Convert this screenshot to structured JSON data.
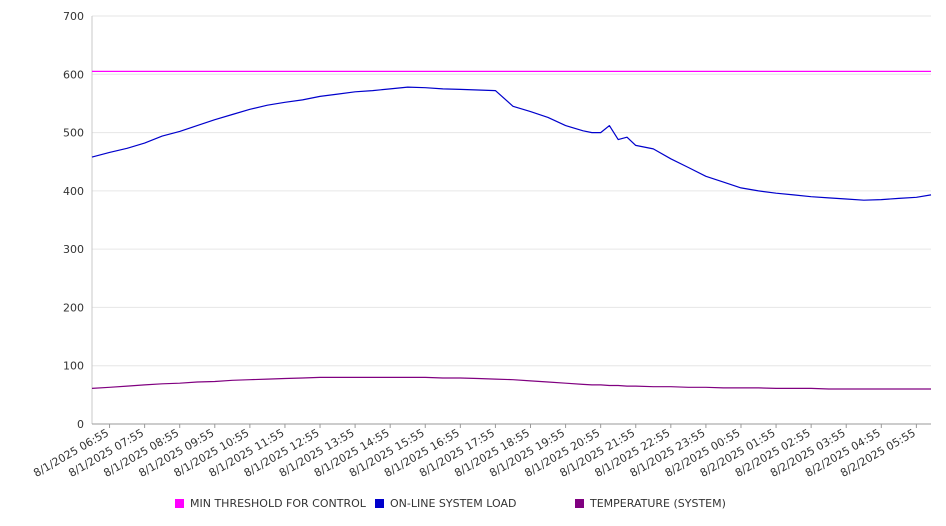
{
  "chart_data": {
    "type": "line",
    "title": "",
    "xlabel": "",
    "ylabel": "",
    "ylim": [
      0,
      700
    ],
    "yticks": [
      0,
      100,
      200,
      300,
      400,
      500,
      600,
      700
    ],
    "grid": true,
    "legend_position": "bottom",
    "x_tick_labels": [
      "8/1/2025 06:55",
      "8/1/2025 07:55",
      "8/1/2025 08:55",
      "8/1/2025 09:55",
      "8/1/2025 10:55",
      "8/1/2025 11:55",
      "8/1/2025 12:55",
      "8/1/2025 13:55",
      "8/1/2025 14:55",
      "8/1/2025 15:55",
      "8/1/2025 16:55",
      "8/1/2025 17:55",
      "8/1/2025 18:55",
      "8/1/2025 19:55",
      "8/1/2025 20:55",
      "8/1/2025 21:55",
      "8/1/2025 22:55",
      "8/1/2025 23:55",
      "8/2/2025 00:55",
      "8/2/2025 01:55",
      "8/2/2025 02:55",
      "8/2/2025 03:55",
      "8/2/2025 04:55",
      "8/2/2025 05:55"
    ],
    "x": [
      "8/1/2025 06:25",
      "8/1/2025 06:55",
      "8/1/2025 07:25",
      "8/1/2025 07:55",
      "8/1/2025 08:25",
      "8/1/2025 08:55",
      "8/1/2025 09:25",
      "8/1/2025 09:55",
      "8/1/2025 10:25",
      "8/1/2025 10:55",
      "8/1/2025 11:25",
      "8/1/2025 11:55",
      "8/1/2025 12:25",
      "8/1/2025 12:55",
      "8/1/2025 13:25",
      "8/1/2025 13:55",
      "8/1/2025 14:25",
      "8/1/2025 14:55",
      "8/1/2025 15:25",
      "8/1/2025 15:55",
      "8/1/2025 16:25",
      "8/1/2025 16:55",
      "8/1/2025 17:25",
      "8/1/2025 17:55",
      "8/1/2025 18:25",
      "8/1/2025 18:55",
      "8/1/2025 19:25",
      "8/1/2025 19:55",
      "8/1/2025 20:25",
      "8/1/2025 20:40",
      "8/1/2025 20:55",
      "8/1/2025 21:10",
      "8/1/2025 21:25",
      "8/1/2025 21:40",
      "8/1/2025 21:55",
      "8/1/2025 22:25",
      "8/1/2025 22:55",
      "8/1/2025 23:25",
      "8/1/2025 23:55",
      "8/2/2025 00:25",
      "8/2/2025 00:55",
      "8/2/2025 01:25",
      "8/2/2025 01:55",
      "8/2/2025 02:25",
      "8/2/2025 02:55",
      "8/2/2025 03:25",
      "8/2/2025 03:55",
      "8/2/2025 04:25",
      "8/2/2025 04:55",
      "8/2/2025 05:25",
      "8/2/2025 05:55",
      "8/2/2025 06:20"
    ],
    "series": [
      {
        "name": "MIN THRESHOLD FOR CONTROL",
        "color": "#ff00ff",
        "values": [
          605,
          605,
          605,
          605,
          605,
          605,
          605,
          605,
          605,
          605,
          605,
          605,
          605,
          605,
          605,
          605,
          605,
          605,
          605,
          605,
          605,
          605,
          605,
          605,
          605,
          605,
          605,
          605,
          605,
          605,
          605,
          605,
          605,
          605,
          605,
          605,
          605,
          605,
          605,
          605,
          605,
          605,
          605,
          605,
          605,
          605,
          605,
          605,
          605,
          605,
          605,
          605
        ]
      },
      {
        "name": "ON-LINE SYSTEM LOAD",
        "color": "#0000cc",
        "values": [
          458,
          466,
          473,
          482,
          494,
          502,
          512,
          522,
          531,
          540,
          547,
          552,
          556,
          562,
          566,
          570,
          572,
          575,
          578,
          577,
          575,
          574,
          573,
          572,
          545,
          536,
          526,
          512,
          503,
          500,
          500,
          512,
          488,
          492,
          478,
          472,
          455,
          440,
          425,
          415,
          405,
          400,
          396,
          393,
          390,
          388,
          386,
          384,
          385,
          387,
          389,
          393
        ]
      },
      {
        "name": "TEMPERATURE (SYSTEM)",
        "color": "#800080",
        "values": [
          61,
          63,
          65,
          67,
          69,
          70,
          72,
          73,
          75,
          76,
          77,
          78,
          79,
          80,
          80,
          80,
          80,
          80,
          80,
          80,
          79,
          79,
          78,
          77,
          76,
          74,
          72,
          70,
          68,
          67,
          67,
          66,
          66,
          65,
          65,
          64,
          64,
          63,
          63,
          62,
          62,
          62,
          61,
          61,
          61,
          60,
          60,
          60,
          60,
          60,
          60,
          60
        ]
      }
    ]
  }
}
